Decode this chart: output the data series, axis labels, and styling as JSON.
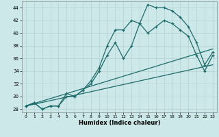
{
  "xlabel": "Humidex (Indice chaleur)",
  "bg_color": "#cde8e8",
  "grid_color": "#b8d4d4",
  "line_color": "#1a6b6b",
  "xlim": [
    -0.5,
    23.5
  ],
  "ylim": [
    27.5,
    45.0
  ],
  "yticks": [
    28,
    30,
    32,
    34,
    36,
    38,
    40,
    42,
    44
  ],
  "xticks": [
    0,
    1,
    2,
    3,
    4,
    5,
    6,
    7,
    8,
    9,
    10,
    11,
    12,
    13,
    14,
    15,
    16,
    17,
    18,
    19,
    20,
    21,
    22,
    23
  ],
  "series1": {
    "x": [
      0,
      1,
      2,
      3,
      4,
      5,
      6,
      7,
      8,
      9,
      10,
      11,
      12,
      13,
      14,
      15,
      16,
      17,
      18,
      19,
      20,
      21,
      22,
      23
    ],
    "y": [
      28.5,
      29.0,
      28.0,
      28.5,
      28.5,
      30.0,
      30.0,
      31.0,
      32.5,
      34.5,
      38.0,
      40.5,
      40.5,
      42.0,
      41.5,
      44.5,
      44.0,
      44.0,
      43.5,
      42.5,
      41.0,
      38.5,
      35.0,
      37.0
    ]
  },
  "series2": {
    "x": [
      0,
      1,
      2,
      3,
      4,
      5,
      6,
      7,
      8,
      9,
      10,
      11,
      12,
      13,
      14,
      15,
      16,
      17,
      18,
      19,
      20,
      21,
      22,
      23
    ],
    "y": [
      28.5,
      29.0,
      28.0,
      28.5,
      28.5,
      30.5,
      30.0,
      31.0,
      32.0,
      34.0,
      36.5,
      38.5,
      36.0,
      38.0,
      41.5,
      40.0,
      41.0,
      42.0,
      41.5,
      40.5,
      39.5,
      36.5,
      34.0,
      36.5
    ]
  },
  "series3": {
    "x": [
      0,
      23
    ],
    "y": [
      28.5,
      37.5
    ]
  },
  "series4": {
    "x": [
      0,
      23
    ],
    "y": [
      28.5,
      35.0
    ]
  }
}
